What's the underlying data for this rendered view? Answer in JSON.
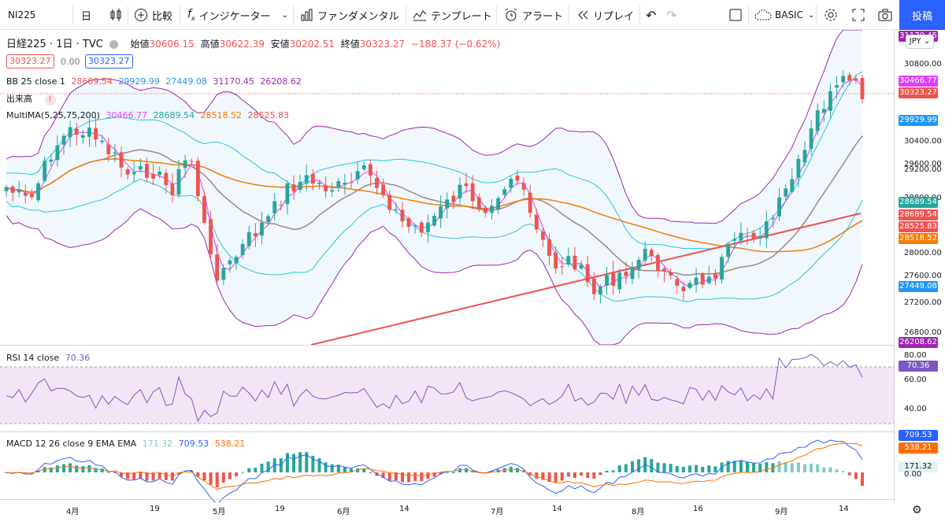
{
  "toolbar": {
    "symbol": "NI225",
    "interval": "日",
    "compare": "比較",
    "indicators": "インジケーター",
    "fundamentals": "ファンダメンタル",
    "templates": "テンプレート",
    "alert": "アラート",
    "replay": "リプレイ",
    "layout": "BASIC",
    "post": "投稿"
  },
  "legend": {
    "title": "日経225 · 1日 · TVC",
    "open_label": "始値",
    "open": "30606.15",
    "high_label": "高値",
    "high": "30622.39",
    "low_label": "安値",
    "low": "30202.51",
    "close_label": "終値",
    "close": "30323.27",
    "change": "−188.37 (−0.62%)",
    "bid": "30323.27",
    "spread": "0.00",
    "ask": "30323.27",
    "bb_label": "BB 25 close 1",
    "bb_values": [
      "28689.54",
      "29929.99",
      "27449.08",
      "31170.45",
      "26208.62"
    ],
    "volume_label": "出来高",
    "ma_label": "MultiMA(5,25,75,200)",
    "ma_values": [
      "30466.77",
      "28689.54",
      "28518.52",
      "28525.83"
    ],
    "currency": "JPY"
  },
  "price_axis": {
    "ticks": [
      "30800.00",
      "30400.00",
      "29600.00",
      "29200.00",
      "28800.00",
      "28000.00",
      "27600.00",
      "27200.00",
      "26800.00"
    ],
    "tags": [
      {
        "text": "31170.45",
        "color": "#9c27b0"
      },
      {
        "text": "30466.77",
        "color": "#e040fb"
      },
      {
        "text": "30323.27",
        "color": "#ef5350"
      },
      {
        "text": "29929.99",
        "color": "#2196f3"
      },
      {
        "text": "28689.54",
        "color": "#26a69a"
      },
      {
        "text": "28689.54",
        "color": "#ef5350"
      },
      {
        "text": "28525.83",
        "color": "#ef5350"
      },
      {
        "text": "28518.52",
        "color": "#f57c00"
      },
      {
        "text": "27449.08",
        "color": "#2196f3"
      },
      {
        "text": "26208.62",
        "color": "#9c27b0"
      }
    ]
  },
  "rsi": {
    "label": "RSI 14 close",
    "value": "70.36",
    "ticks": [
      "80.00",
      "60.00",
      "40.00"
    ]
  },
  "macd": {
    "label": "MACD 12 26 close 9 EMA EMA",
    "values": [
      "171.32",
      "709.53",
      "538.21"
    ],
    "ticks": [
      "0.00"
    ]
  },
  "time_axis": [
    "4月",
    "19",
    "5月",
    "19",
    "6月",
    "14",
    "7月",
    "14",
    "8月",
    "16",
    "9月",
    "14"
  ],
  "colors": {
    "up": "#26a69a",
    "down": "#ef5350",
    "accent": "#2962ff"
  }
}
